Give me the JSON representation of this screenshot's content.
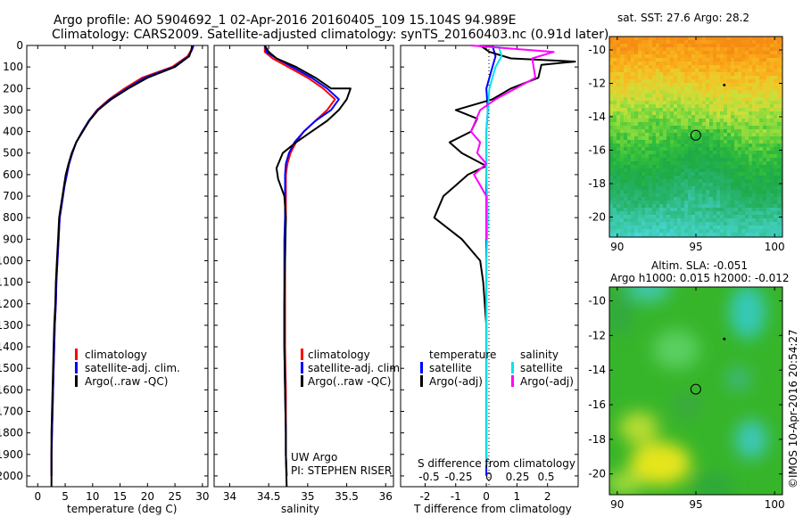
{
  "title_line1": "Argo profile: AO 5904692_1 02-Apr-2016 20160405_109 15.104S 94.989E",
  "title_line2": "Climatology: CARS2009. Satellite-adjusted climatology: synTS_20160403.nc (0.91d later)",
  "credit": "©IMOS 10-Apr-2016 20:54:27",
  "colors": {
    "climatology": "#ff0000",
    "satellite": "#0000ff",
    "argo": "#000000",
    "satellite_s": "#00e5ee",
    "argo_s": "#ff00ff"
  },
  "chart_data": [
    {
      "type": "line",
      "xlabel": "temperature (deg C)",
      "ylim": [
        0,
        2050
      ],
      "xlim": [
        -2,
        31
      ],
      "x_ticks": [
        0,
        5,
        10,
        15,
        20,
        25,
        30
      ],
      "y_ticks": [
        0,
        100,
        200,
        300,
        400,
        500,
        600,
        700,
        800,
        900,
        1000,
        1100,
        1200,
        1300,
        1400,
        1500,
        1600,
        1700,
        1800,
        1900,
        2000
      ],
      "y_tick_labels": [
        "0",
        "100",
        "200",
        "300",
        "400",
        "500",
        "600",
        "700",
        "800",
        "900",
        "1000",
        "1100",
        "1200",
        "1300",
        "1400",
        "1500",
        "1600",
        "1700",
        "1800",
        "1900",
        "2000"
      ],
      "legend": [
        "climatology",
        "satellite-adj. clim.",
        "Argo(..raw -QC)"
      ],
      "series": [
        {
          "name": "climatology",
          "x": [
            28.2,
            28.0,
            27.3,
            24.5,
            19.0,
            15.8,
            13.0,
            10.8,
            9.3,
            8.1,
            7.0,
            6.3,
            5.7,
            5.3,
            4.9,
            4.6,
            4.3,
            4.0,
            3.8,
            3.6,
            3.4,
            3.3,
            3.1,
            3.0,
            2.9,
            2.8,
            2.7,
            2.6,
            2.5,
            2.5
          ],
          "y": [
            0,
            20,
            50,
            100,
            150,
            200,
            250,
            300,
            350,
            400,
            450,
            500,
            550,
            600,
            650,
            700,
            750,
            800,
            900,
            1000,
            1100,
            1200,
            1300,
            1400,
            1500,
            1600,
            1700,
            1800,
            1900,
            2000
          ]
        },
        {
          "name": "satellite",
          "x": [
            28.4,
            28.1,
            27.5,
            24.8,
            19.5,
            16.2,
            13.2,
            10.9,
            9.3,
            8.1,
            7.0,
            6.3,
            5.7,
            5.3,
            4.9,
            4.6,
            4.3,
            4.0,
            3.8,
            3.6,
            3.4,
            3.3,
            3.1,
            3.0,
            2.9,
            2.8,
            2.7,
            2.6,
            2.5,
            2.5
          ],
          "y": [
            0,
            20,
            50,
            100,
            150,
            200,
            250,
            300,
            350,
            400,
            450,
            500,
            550,
            600,
            650,
            700,
            750,
            800,
            900,
            1000,
            1100,
            1200,
            1300,
            1400,
            1500,
            1600,
            1700,
            1800,
            1900,
            2000
          ]
        },
        {
          "name": "argo",
          "x": [
            28.1,
            28.0,
            27.6,
            25.0,
            20.0,
            16.5,
            13.4,
            11.0,
            9.4,
            8.2,
            7.0,
            6.2,
            5.6,
            5.1,
            4.8,
            4.5,
            4.2,
            3.9,
            3.7,
            3.5,
            3.3,
            3.2,
            3.0,
            2.9,
            2.8,
            2.7,
            2.6,
            2.5,
            2.5,
            2.5
          ],
          "y": [
            0,
            20,
            50,
            100,
            150,
            200,
            250,
            300,
            350,
            400,
            450,
            500,
            550,
            600,
            650,
            700,
            750,
            800,
            900,
            1000,
            1100,
            1200,
            1300,
            1400,
            1500,
            1600,
            1700,
            1800,
            1900,
            2050
          ]
        }
      ]
    },
    {
      "type": "line",
      "xlabel": "salinity",
      "ylim": [
        0,
        2050
      ],
      "xlim": [
        33.8,
        36.1
      ],
      "x_ticks": [
        34,
        34.5,
        35,
        35.5,
        36
      ],
      "x_tick_labels": [
        "34",
        "34.5",
        "35",
        "35.5",
        "36"
      ],
      "legend": [
        "climatology",
        "satellite-adj. clim.",
        "Argo(..raw -QC)"
      ],
      "annotations": [
        "UW Argo",
        "PI: STEPHEN RISER"
      ],
      "series": [
        {
          "name": "climatology",
          "x": [
            34.45,
            34.45,
            34.55,
            34.75,
            35.0,
            35.2,
            35.35,
            35.25,
            35.1,
            34.95,
            34.85,
            34.78,
            34.74,
            34.72,
            34.72,
            34.72,
            34.71,
            34.71,
            34.71,
            34.71,
            34.72,
            34.72,
            34.72,
            34.73
          ],
          "y": [
            0,
            30,
            60,
            100,
            150,
            200,
            250,
            300,
            350,
            400,
            450,
            500,
            550,
            600,
            700,
            800,
            900,
            1000,
            1200,
            1400,
            1600,
            1800,
            1900,
            2000
          ]
        },
        {
          "name": "satellite",
          "x": [
            34.45,
            34.47,
            34.6,
            34.8,
            35.05,
            35.25,
            35.4,
            35.3,
            35.1,
            34.95,
            34.83,
            34.76,
            34.72,
            34.71,
            34.71,
            34.71,
            34.7,
            34.7,
            34.7,
            34.7,
            34.71,
            34.72,
            34.72,
            34.73
          ],
          "y": [
            0,
            30,
            60,
            100,
            150,
            200,
            250,
            300,
            350,
            400,
            450,
            500,
            550,
            600,
            700,
            800,
            900,
            1000,
            1200,
            1400,
            1600,
            1800,
            1900,
            2000
          ]
        },
        {
          "name": "argo",
          "x": [
            34.45,
            34.5,
            34.6,
            34.85,
            35.1,
            35.3,
            35.55,
            35.5,
            35.4,
            35.25,
            35.05,
            34.85,
            34.68,
            34.6,
            34.62,
            34.7,
            34.72,
            34.71,
            34.7,
            34.7,
            34.71,
            34.72,
            34.72,
            34.73
          ],
          "y": [
            0,
            30,
            60,
            100,
            150,
            200,
            200,
            250,
            300,
            350,
            400,
            450,
            500,
            570,
            620,
            700,
            800,
            1000,
            1200,
            1400,
            1600,
            1800,
            1900,
            2050
          ]
        }
      ]
    },
    {
      "type": "line",
      "xlabel": "T difference from climatology",
      "xlabel_top": "S difference from climatology",
      "ylim": [
        0,
        2050
      ],
      "xlim": [
        -2.8,
        3.0
      ],
      "x_ticks": [
        -2,
        -1,
        0,
        1,
        2
      ],
      "x_tick_labels": [
        "-2",
        "-1",
        "0",
        "1",
        "2"
      ],
      "s_tick_labels": [
        "-0.5",
        "-0.25",
        "0",
        "0.25",
        "0.5"
      ],
      "legend_t": [
        "temperature",
        "satellite",
        "Argo(-adj)"
      ],
      "legend_s": [
        "salinity",
        "satellite",
        "Argo(-adj)"
      ],
      "series": [
        {
          "name": "T satellite",
          "x": [
            0.2,
            0.3,
            0.2,
            0.1,
            0.0,
            0.05,
            0.0,
            0.0,
            0.0,
            0.0,
            0.0,
            0.0,
            0.0,
            0.0
          ],
          "y": [
            0,
            50,
            100,
            150,
            200,
            300,
            400,
            500,
            600,
            800,
            1000,
            1400,
            1800,
            2000
          ]
        },
        {
          "name": "T Argo(-adj)",
          "x": [
            -0.2,
            0.1,
            0.8,
            2.9,
            1.8,
            1.7,
            0.8,
            0.2,
            -1.0,
            -0.3,
            -0.5,
            -1.2,
            -0.8,
            0.0,
            -0.6,
            -1.0,
            -1.4,
            -1.7,
            -0.8,
            -0.2,
            -0.1,
            0.0,
            0.0,
            0.0
          ],
          "y": [
            0,
            30,
            60,
            75,
            90,
            150,
            200,
            250,
            300,
            340,
            400,
            450,
            500,
            560,
            600,
            650,
            700,
            800,
            900,
            1000,
            1100,
            1300,
            1600,
            1950
          ]
        },
        {
          "name": "S satellite",
          "x": [
            0.4,
            0.5,
            0.3,
            0.2,
            0.1,
            0.05,
            0.0,
            0.0,
            0.05,
            0.0,
            0.0,
            0.0
          ],
          "y": [
            0,
            50,
            100,
            150,
            200,
            300,
            400,
            600,
            800,
            1000,
            1500,
            1950
          ]
        },
        {
          "name": "S Argo(-adj)",
          "x": [
            -0.5,
            2.2,
            1.5,
            1.6,
            0.3,
            -0.2,
            -0.5,
            -0.2,
            -0.3,
            0.0,
            -0.4,
            0.0,
            0.0,
            0.0
          ],
          "y": [
            0,
            30,
            60,
            150,
            250,
            300,
            400,
            450,
            500,
            550,
            600,
            700,
            800,
            900
          ]
        }
      ]
    },
    {
      "type": "heatmap",
      "title": "sat. SST: 27.6 Argo: 28.2",
      "xlim": [
        89.5,
        100.5
      ],
      "ylim": [
        -21.2,
        -9.2
      ],
      "x_ticks": [
        90,
        95,
        100
      ],
      "y_ticks": [
        -10,
        -12,
        -14,
        -16,
        -18,
        -20
      ],
      "x_tick_labels": [
        "90",
        "95",
        "100"
      ],
      "y_tick_labels": [
        "-10",
        "-12",
        "-14",
        "-16",
        "-18",
        "-20"
      ],
      "marker": {
        "lon": 94.989,
        "lat": -15.104
      },
      "point": {
        "lon": 96.8,
        "lat": -12.1
      }
    },
    {
      "type": "heatmap",
      "title": "Altim. SLA: -0.051",
      "subtitle": "Argo h1000: 0.015 h2000: -0.012",
      "xlim": [
        89.5,
        100.5
      ],
      "ylim": [
        -21.2,
        -9.2
      ],
      "x_ticks": [
        90,
        95,
        100
      ],
      "y_ticks": [
        -10,
        -12,
        -14,
        -16,
        -18,
        -20
      ],
      "x_tick_labels": [
        "90",
        "95",
        "100"
      ],
      "y_tick_labels": [
        "-10",
        "-12",
        "-14",
        "-16",
        "-18",
        "-20"
      ],
      "marker": {
        "lon": 94.989,
        "lat": -15.104
      },
      "point": {
        "lon": 96.8,
        "lat": -12.2
      }
    }
  ]
}
